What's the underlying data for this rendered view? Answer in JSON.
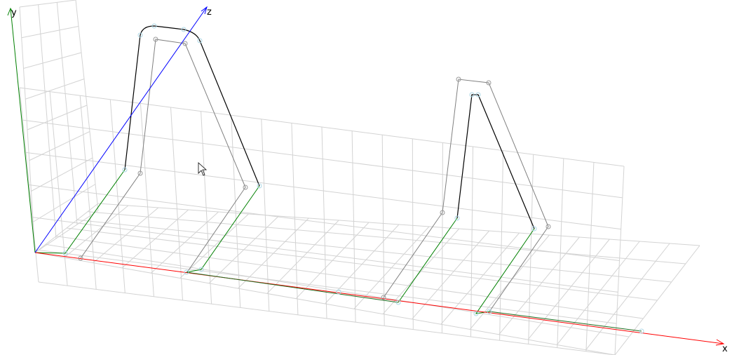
{
  "axes": {
    "x": {
      "label": "x",
      "color": "#ff0000"
    },
    "y": {
      "label": "y",
      "color": "#008000"
    },
    "z": {
      "label": "z",
      "color": "#0000ff"
    }
  },
  "colors": {
    "grid": "#d3d3d3",
    "profile_active": "#000000",
    "profile_offset": "#808080",
    "base_edge": "#008000",
    "vertex_marker": "#add8e6"
  },
  "cursor": {
    "icon": "arrow-cursor-icon"
  }
}
